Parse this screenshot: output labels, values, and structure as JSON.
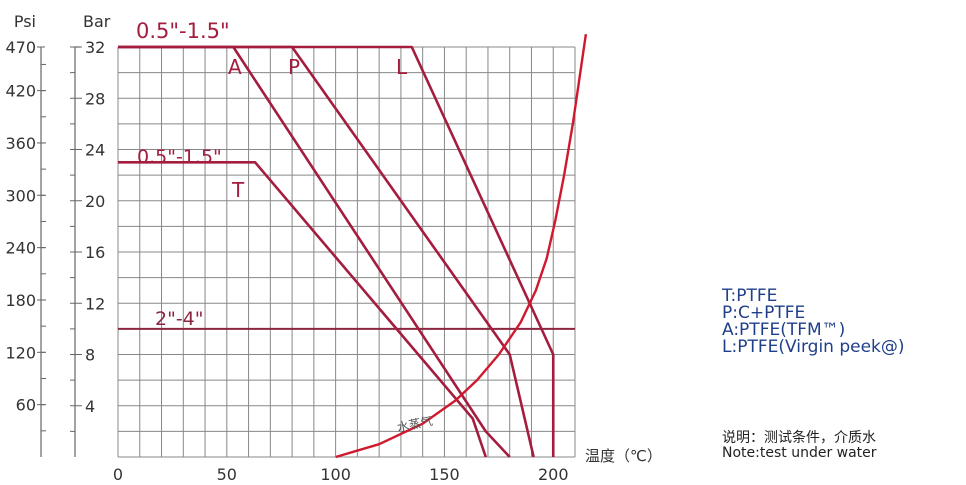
{
  "chart_data": {
    "type": "line",
    "x_axis": {
      "ticks": [
        0,
        50,
        100,
        150,
        200
      ],
      "label": "温度（℃）",
      "range": [
        0,
        210
      ]
    },
    "bar_axis": {
      "title": "Bar",
      "ticks": [
        4,
        8,
        12,
        16,
        20,
        24,
        28,
        32
      ],
      "range": [
        0,
        32
      ]
    },
    "psi_axis": {
      "title": "Psi",
      "ticks": [
        60,
        120,
        180,
        240,
        300,
        360,
        420,
        470
      ],
      "range": [
        0,
        470
      ]
    },
    "grid": true,
    "series": [
      {
        "name": "A",
        "color": "#a41d3e",
        "x": [
          0,
          53,
          169,
          180
        ],
        "y": [
          32,
          32,
          2,
          0
        ]
      },
      {
        "name": "P",
        "color": "#a41d3e",
        "x": [
          0,
          80,
          180,
          191
        ],
        "y": [
          32,
          32,
          8,
          0
        ]
      },
      {
        "name": "L",
        "color": "#a41d3e",
        "x": [
          0,
          135,
          200,
          200
        ],
        "y": [
          32,
          32,
          8,
          0
        ]
      },
      {
        "name": "T",
        "color": "#a41d3e",
        "x": [
          0,
          63,
          163,
          169
        ],
        "y": [
          23,
          23,
          3,
          0
        ]
      }
    ],
    "reference_line": {
      "label": "2\"-4\"",
      "y": 10,
      "color": "#8c2640"
    },
    "vapor_curve": {
      "label": "水蒸气",
      "color": "#d0182e",
      "x": [
        100,
        120,
        140,
        155,
        165,
        175,
        185,
        192,
        197,
        201,
        205,
        209,
        212,
        215
      ],
      "y": [
        0,
        1,
        2.6,
        4.4,
        6.0,
        8.0,
        10.5,
        13.0,
        15.5,
        18.5,
        22.0,
        26.0,
        29.5,
        33.0
      ]
    },
    "annotations": [
      {
        "text": "0.5\"-1.5\"",
        "color": "#a41d3e"
      },
      {
        "text": "0.5\"-1.5\"",
        "color": "#a41d3e"
      },
      {
        "text": "2\"-4\"",
        "color": "#8c2640"
      }
    ]
  },
  "legend": [
    "T:PTFE",
    "P:C+PTFE",
    "A:PTFE(TFM™)",
    "L:PTFE(Virgin peek@)"
  ],
  "note": {
    "cn": "说明：测试条件，介质水",
    "en": "Note:test under water"
  },
  "colors": {
    "grid": "#888888",
    "axis": "#666666",
    "legend_text": "#1f3f8a"
  }
}
